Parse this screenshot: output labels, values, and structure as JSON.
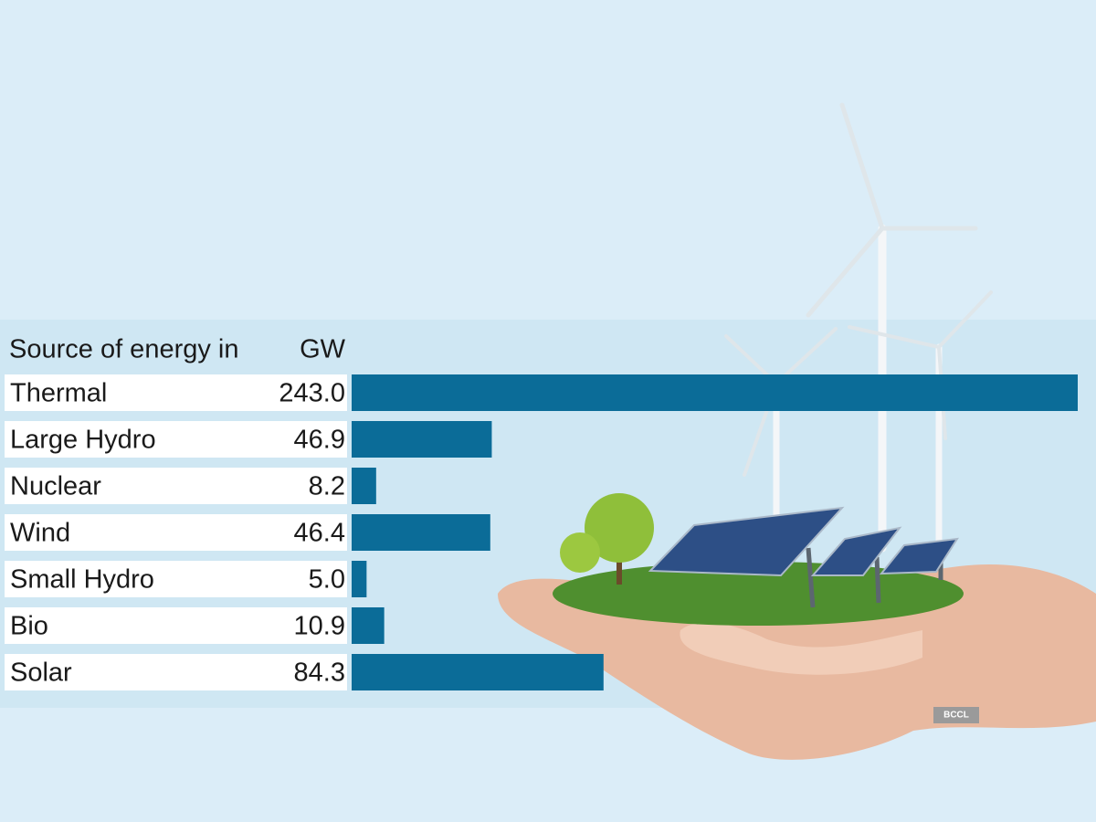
{
  "chart_data": {
    "type": "bar",
    "orientation": "horizontal",
    "header": "Source of energy in",
    "unit": "GW",
    "categories": [
      "Thermal",
      "Large Hydro",
      "Nuclear",
      "Wind",
      "Small Hydro",
      "Bio",
      "Solar"
    ],
    "values": [
      243,
      46.9,
      8.2,
      46.4,
      5,
      10.9,
      84.3
    ],
    "value_labels": [
      "243.0",
      "46.9",
      "8.2",
      "46.4",
      "5.0",
      "10.9",
      "84.3"
    ],
    "color": "#0b6c98",
    "credit": "BCCL"
  }
}
